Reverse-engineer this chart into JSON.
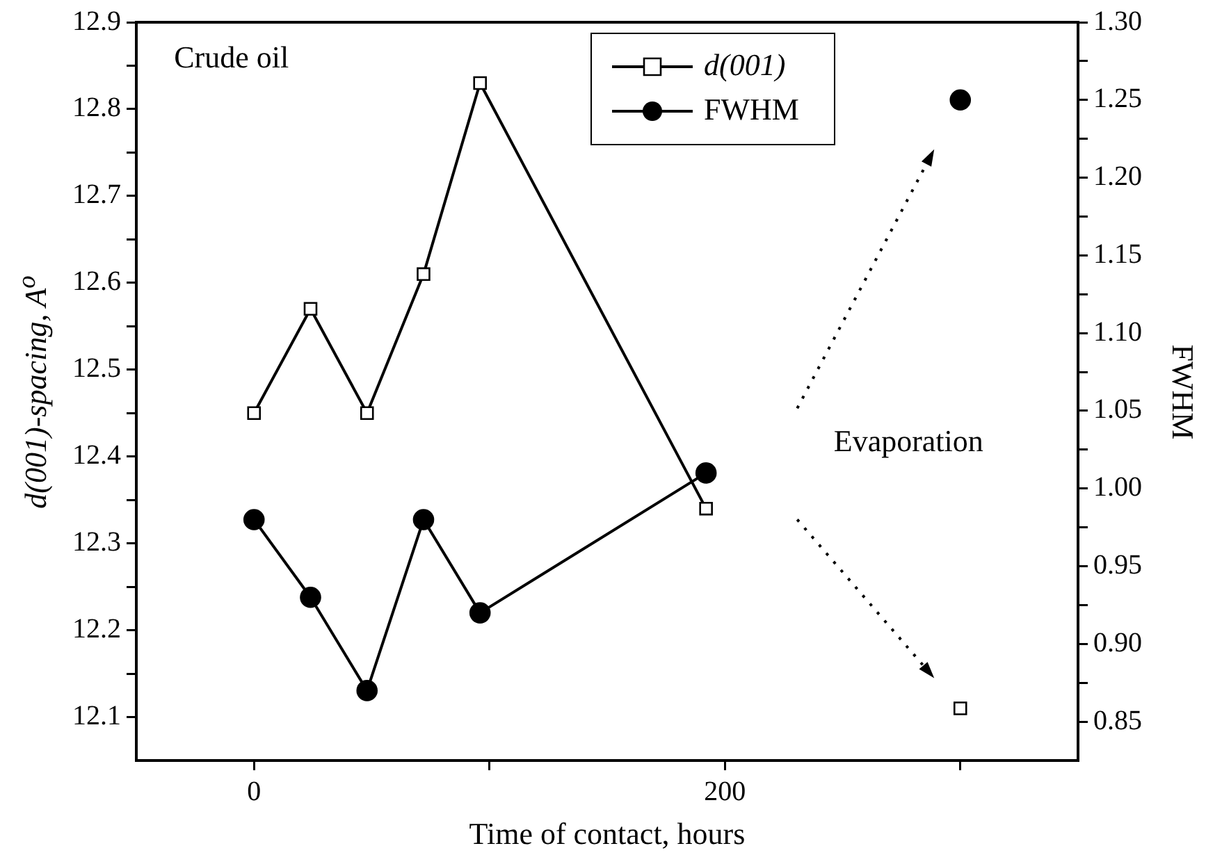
{
  "chart_data": {
    "type": "line",
    "xlabel": "Time of contact, hours",
    "ylabel": "d(001)-spacing, A$^{o}$",
    "y2label": "FWHM",
    "annotations": [
      "Crude oil",
      "Evaporation"
    ],
    "xlim": [
      -50,
      350
    ],
    "xticks": [
      0,
      {
        "value": 100,
        "label": null
      },
      200,
      {
        "value": 300,
        "label": null
      }
    ],
    "ylim": [
      12.05,
      12.9
    ],
    "yticks": [
      12.1,
      {
        "value": 12.15,
        "label": null
      },
      12.2,
      {
        "value": 12.25,
        "label": null
      },
      12.3,
      {
        "value": 12.35,
        "label": null
      },
      12.4,
      {
        "value": 12.45,
        "label": null
      },
      12.5,
      {
        "value": 12.55,
        "label": null
      },
      12.6,
      {
        "value": 12.65,
        "label": null
      },
      12.7,
      {
        "value": 12.75,
        "label": null
      },
      12.8,
      {
        "value": 12.85,
        "label": null
      },
      12.9
    ],
    "y2lim": [
      0.825,
      1.3
    ],
    "y2ticks": [
      0.85,
      {
        "value": 0.875,
        "label": null
      },
      {
        "value": 0.9,
        "label": "0.90"
      },
      {
        "value": 0.925,
        "label": null
      },
      0.95,
      {
        "value": 0.975,
        "label": null
      },
      {
        "value": 1.0,
        "label": "1.00"
      },
      {
        "value": 1.025,
        "label": null
      },
      1.05,
      {
        "value": 1.075,
        "label": null
      },
      {
        "value": 1.1,
        "label": "1.10"
      },
      {
        "value": 1.125,
        "label": null
      },
      1.15,
      {
        "value": 1.175,
        "label": null
      },
      {
        "value": 1.2,
        "label": "1.20"
      },
      {
        "value": 1.225,
        "label": null
      },
      1.25,
      {
        "value": 1.275,
        "label": null
      },
      {
        "value": 1.3,
        "label": "1.30"
      }
    ],
    "grid": false,
    "legend": "top right",
    "line_style": "solid",
    "series": [
      {
        "name": "d(001)",
        "color": "#000000",
        "marker": "square",
        "x": [
          0,
          24,
          48,
          72,
          96,
          192
        ],
        "values": [
          12.45,
          12.57,
          12.45,
          12.61,
          12.83,
          12.34
        ]
      },
      {
        "name": "FWHM",
        "color": "#000000",
        "marker": "circle",
        "axis": "y2",
        "x": [
          0,
          24,
          48,
          72,
          96,
          192
        ],
        "values": [
          0.98,
          0.93,
          0.87,
          0.98,
          0.92,
          1.01
        ]
      },
      {
        "type": "scatter",
        "color": "#000000",
        "marker": "square",
        "x": [
          300
        ],
        "values": [
          12.11
        ]
      },
      {
        "type": "scatter",
        "color": "#000000",
        "marker": "circle",
        "axis": "y2",
        "x": [
          300
        ],
        "values": [
          1.25
        ]
      }
    ]
  }
}
